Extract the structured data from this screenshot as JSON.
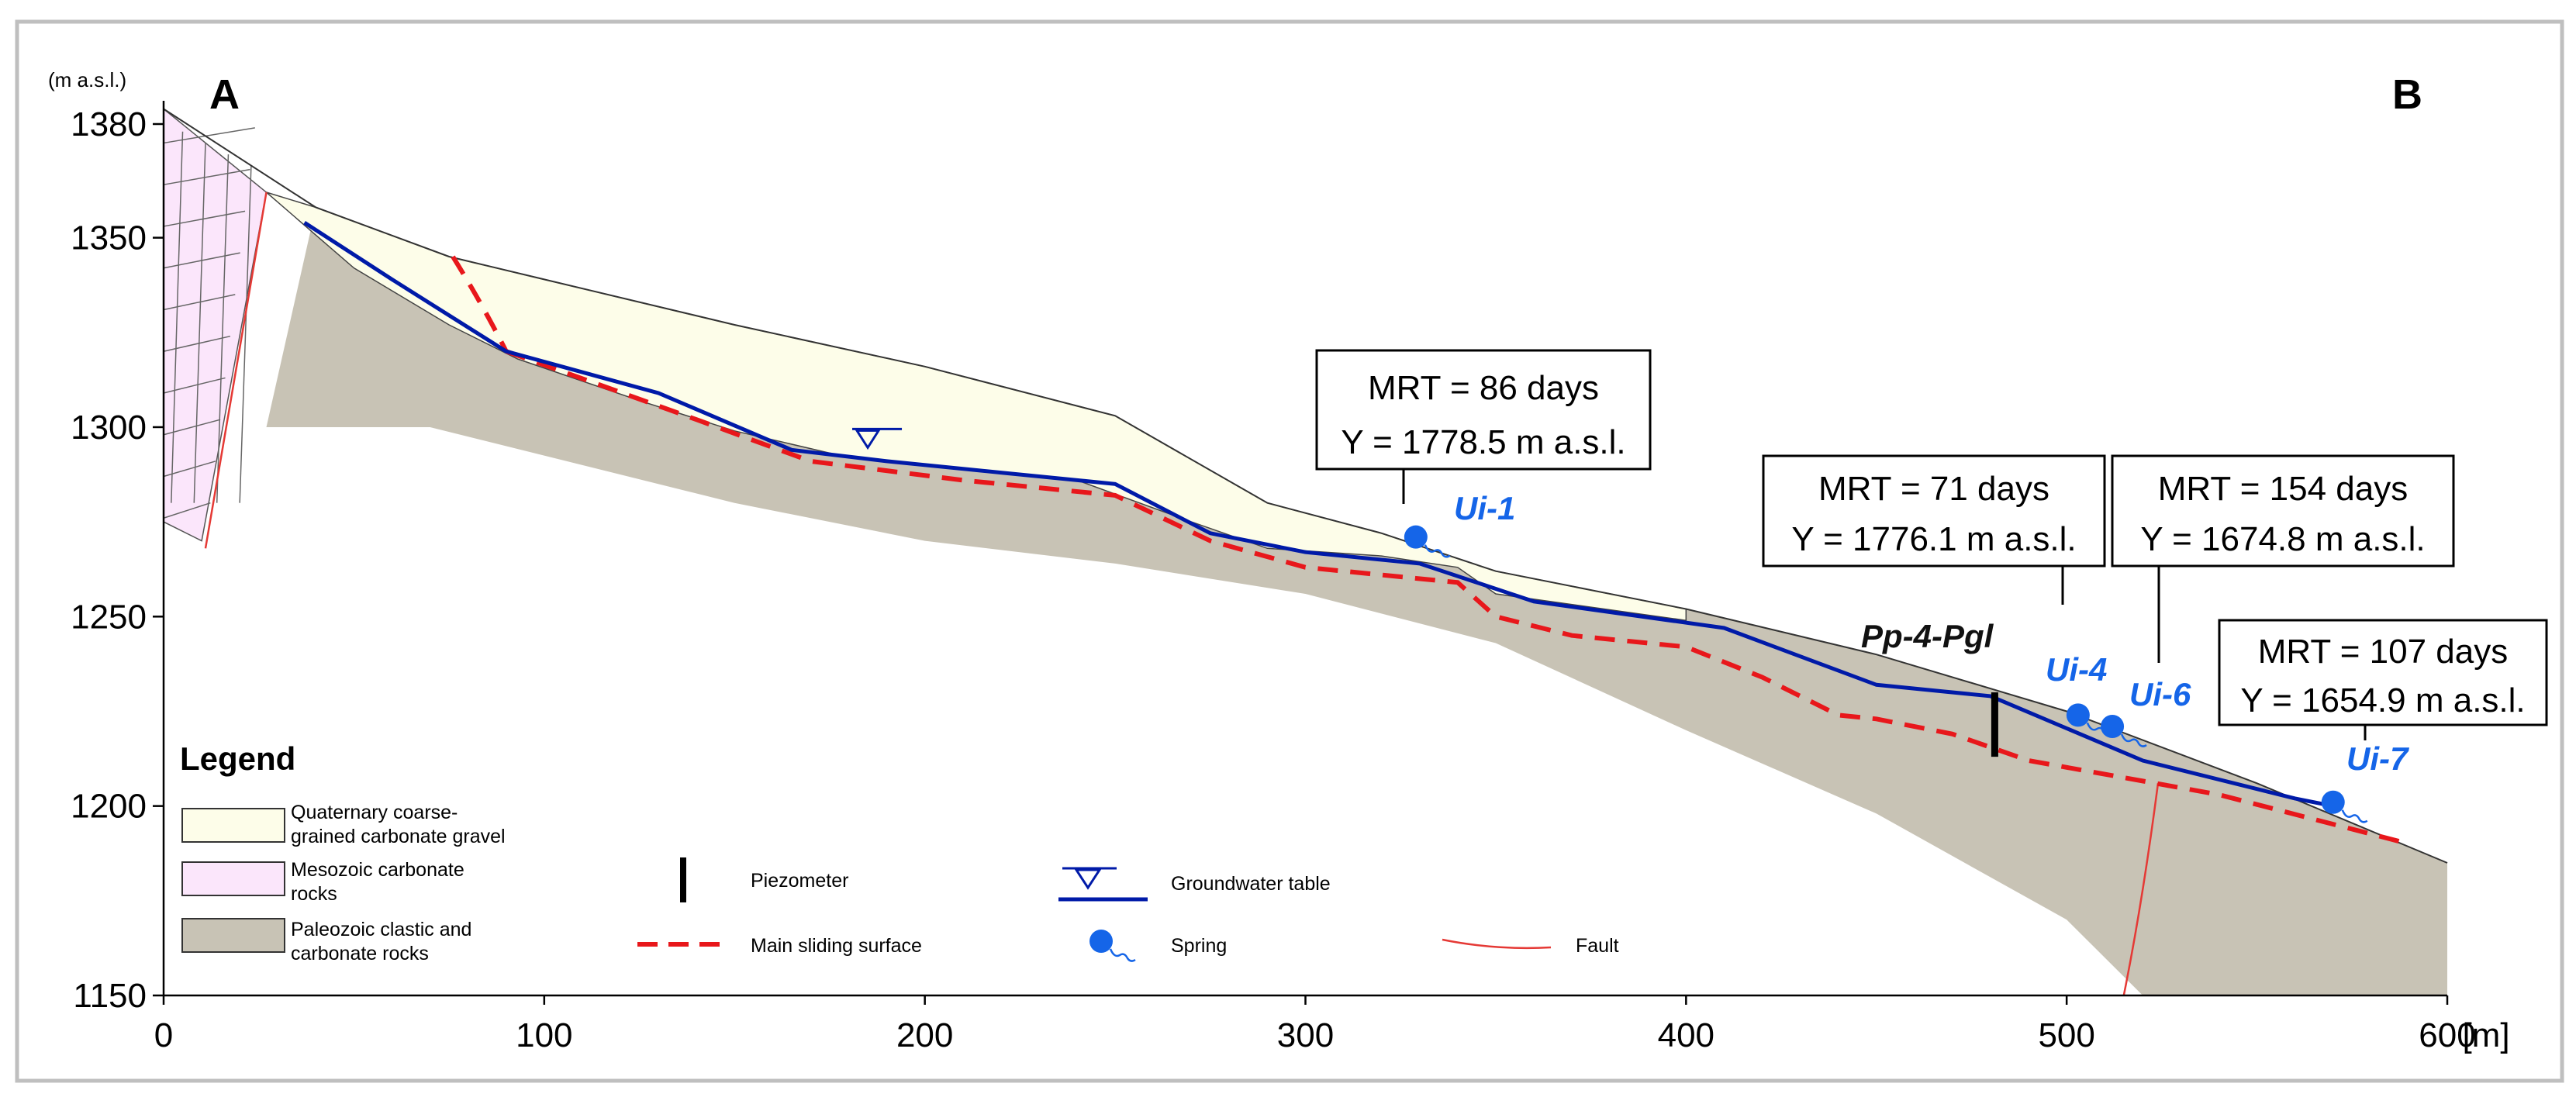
{
  "figure": {
    "corner_left": "A",
    "corner_right": "B",
    "y_unit": "(m a.s.l.)",
    "x_unit": "[m]"
  },
  "chart_data": {
    "type": "cross-section",
    "xlim": [
      0,
      600
    ],
    "ylim": [
      1150,
      1385
    ],
    "x_ticks": [
      0,
      100,
      200,
      300,
      400,
      500,
      600
    ],
    "y_ticks": [
      1150,
      1200,
      1250,
      1300,
      1350,
      1380
    ],
    "ground_surface": [
      [
        0,
        1384
      ],
      [
        40,
        1358
      ],
      [
        75,
        1345
      ],
      [
        100,
        1339
      ],
      [
        150,
        1327
      ],
      [
        200,
        1316
      ],
      [
        250,
        1303
      ],
      [
        290,
        1280
      ],
      [
        320,
        1272
      ],
      [
        350,
        1262
      ],
      [
        400,
        1252
      ],
      [
        450,
        1240
      ],
      [
        500,
        1225
      ],
      [
        550,
        1206
      ],
      [
        600,
        1185
      ]
    ],
    "gravel_base": [
      [
        27,
        1362
      ],
      [
        50,
        1342
      ],
      [
        75,
        1327
      ],
      [
        93,
        1318
      ],
      [
        125,
        1307
      ],
      [
        150,
        1299
      ],
      [
        180,
        1292
      ],
      [
        210,
        1289
      ],
      [
        240,
        1286
      ],
      [
        270,
        1275
      ],
      [
        290,
        1268
      ],
      [
        320,
        1266
      ],
      [
        340,
        1263
      ],
      [
        350,
        1256
      ],
      [
        400,
        1249
      ],
      [
        420,
        1244
      ],
      [
        450,
        1234
      ],
      [
        480,
        1224
      ],
      [
        520,
        1212
      ],
      [
        560,
        1203
      ],
      [
        600,
        1185
      ]
    ],
    "paleozoic_base": [
      [
        27,
        1300
      ],
      [
        70,
        1300
      ],
      [
        150,
        1280
      ],
      [
        200,
        1270
      ],
      [
        250,
        1264
      ],
      [
        300,
        1256
      ],
      [
        350,
        1243
      ],
      [
        400,
        1220
      ],
      [
        450,
        1198
      ],
      [
        500,
        1170
      ],
      [
        520,
        1150
      ]
    ],
    "groundwater_table": [
      [
        37,
        1354
      ],
      [
        60,
        1339
      ],
      [
        90,
        1320
      ],
      [
        130,
        1309
      ],
      [
        165,
        1294
      ],
      [
        190,
        1291
      ],
      [
        220,
        1288
      ],
      [
        250,
        1285
      ],
      [
        275,
        1272
      ],
      [
        300,
        1267
      ],
      [
        330,
        1264
      ],
      [
        360,
        1254
      ],
      [
        410,
        1247
      ],
      [
        450,
        1232
      ],
      [
        480,
        1229
      ],
      [
        520,
        1212
      ],
      [
        560,
        1202
      ],
      [
        570,
        1200
      ]
    ],
    "main_sliding_surface": [
      [
        90,
        1320
      ],
      [
        140,
        1302
      ],
      [
        170,
        1291
      ],
      [
        210,
        1286
      ],
      [
        250,
        1282
      ],
      [
        275,
        1270
      ],
      [
        300,
        1263
      ],
      [
        340,
        1259
      ],
      [
        350,
        1250
      ],
      [
        370,
        1245
      ],
      [
        400,
        1242
      ],
      [
        420,
        1234
      ],
      [
        440,
        1224
      ],
      [
        450,
        1223
      ],
      [
        470,
        1219
      ],
      [
        490,
        1212
      ],
      [
        540,
        1203
      ],
      [
        590,
        1190
      ]
    ],
    "springs": [
      {
        "name": "Ui-1",
        "x": 329,
        "y": 1271
      },
      {
        "name": "Ui-4",
        "x": 503,
        "y": 1224
      },
      {
        "name": "Ui-6",
        "x": 512,
        "y": 1221
      },
      {
        "name": "Ui-7",
        "x": 570,
        "y": 1201
      }
    ],
    "piezometer": {
      "name": "Pp-4-Pgl",
      "x": 481,
      "top": 1230,
      "bottom": 1213
    },
    "groundwater_marker": {
      "x": 185,
      "y": 1295
    },
    "mrt_boxes": [
      {
        "mrt": "MRT = 86 days",
        "y": "Y =  1778.5 m a.s.l."
      },
      {
        "mrt": "MRT = 71 days",
        "y": "Y =  1776.1 m a.s.l."
      },
      {
        "mrt": "MRT = 154 days",
        "y": "Y =  1674.8 m a.s.l."
      },
      {
        "mrt": "MRT = 107 days",
        "y": "Y =  1654.9 m a.s.l."
      }
    ]
  },
  "legend": {
    "title": "Legend",
    "quaternary": [
      "Quaternary coarse-",
      "grained carbonate gravel"
    ],
    "mesozoic": [
      "Mesozoic carbonate",
      "rocks"
    ],
    "paleozoic": [
      "Paleozoic clastic and",
      "carbonate rocks"
    ],
    "piezometer": "Piezometer",
    "groundwater": "Groundwater table",
    "sliding": "Main sliding surface",
    "spring": "Spring",
    "fault": "Fault"
  },
  "colors": {
    "gravel": "#fdfde9",
    "mesozoic": "#fbe6fb",
    "paleozoic": "#c8c3b5",
    "groundwater": "#001aa8",
    "sliding": "#e8171b",
    "spring": "#1565e8",
    "fault": "#e53935"
  }
}
